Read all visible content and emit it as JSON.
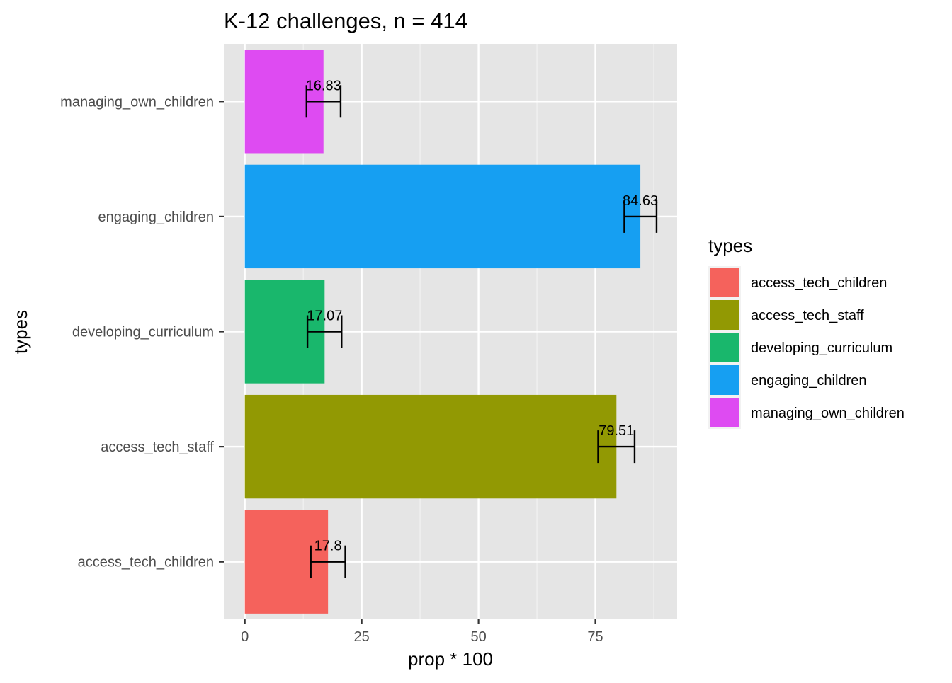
{
  "chart_data": {
    "type": "bar",
    "orientation": "horizontal",
    "title": "K-12 challenges, n = 414",
    "xlabel": "prop * 100",
    "ylabel": "types",
    "xlim": [
      -4.5,
      92.5
    ],
    "xticks": [
      0,
      25,
      50,
      75
    ],
    "grid": true,
    "legend": {
      "title": "types",
      "placement": "right",
      "entries": [
        {
          "label": "access_tech_children",
          "color": "#F8766D"
        },
        {
          "label": "access_tech_staff",
          "color": "#A3A500"
        },
        {
          "label": "developing_curriculum",
          "color": "#00BF7D"
        },
        {
          "label": "engaging_children",
          "color": "#00B0F6"
        },
        {
          "label": "managing_own_children",
          "color": "#E76BF3"
        }
      ]
    },
    "categories": [
      "access_tech_children",
      "access_tech_staff",
      "developing_curriculum",
      "engaging_children",
      "managing_own_children"
    ],
    "values": [
      17.8,
      79.51,
      17.07,
      84.63,
      16.83
    ],
    "data_labels": [
      "17.8",
      "79.51",
      "17.07",
      "84.63",
      "16.83"
    ],
    "error_low": [
      14.1,
      75.6,
      13.4,
      81.2,
      13.2
    ],
    "error_high": [
      21.5,
      83.4,
      20.7,
      88.1,
      20.5
    ],
    "colors": [
      "#F5625C",
      "#929903",
      "#19B76C",
      "#169FF2",
      "#DE4BF2"
    ]
  }
}
